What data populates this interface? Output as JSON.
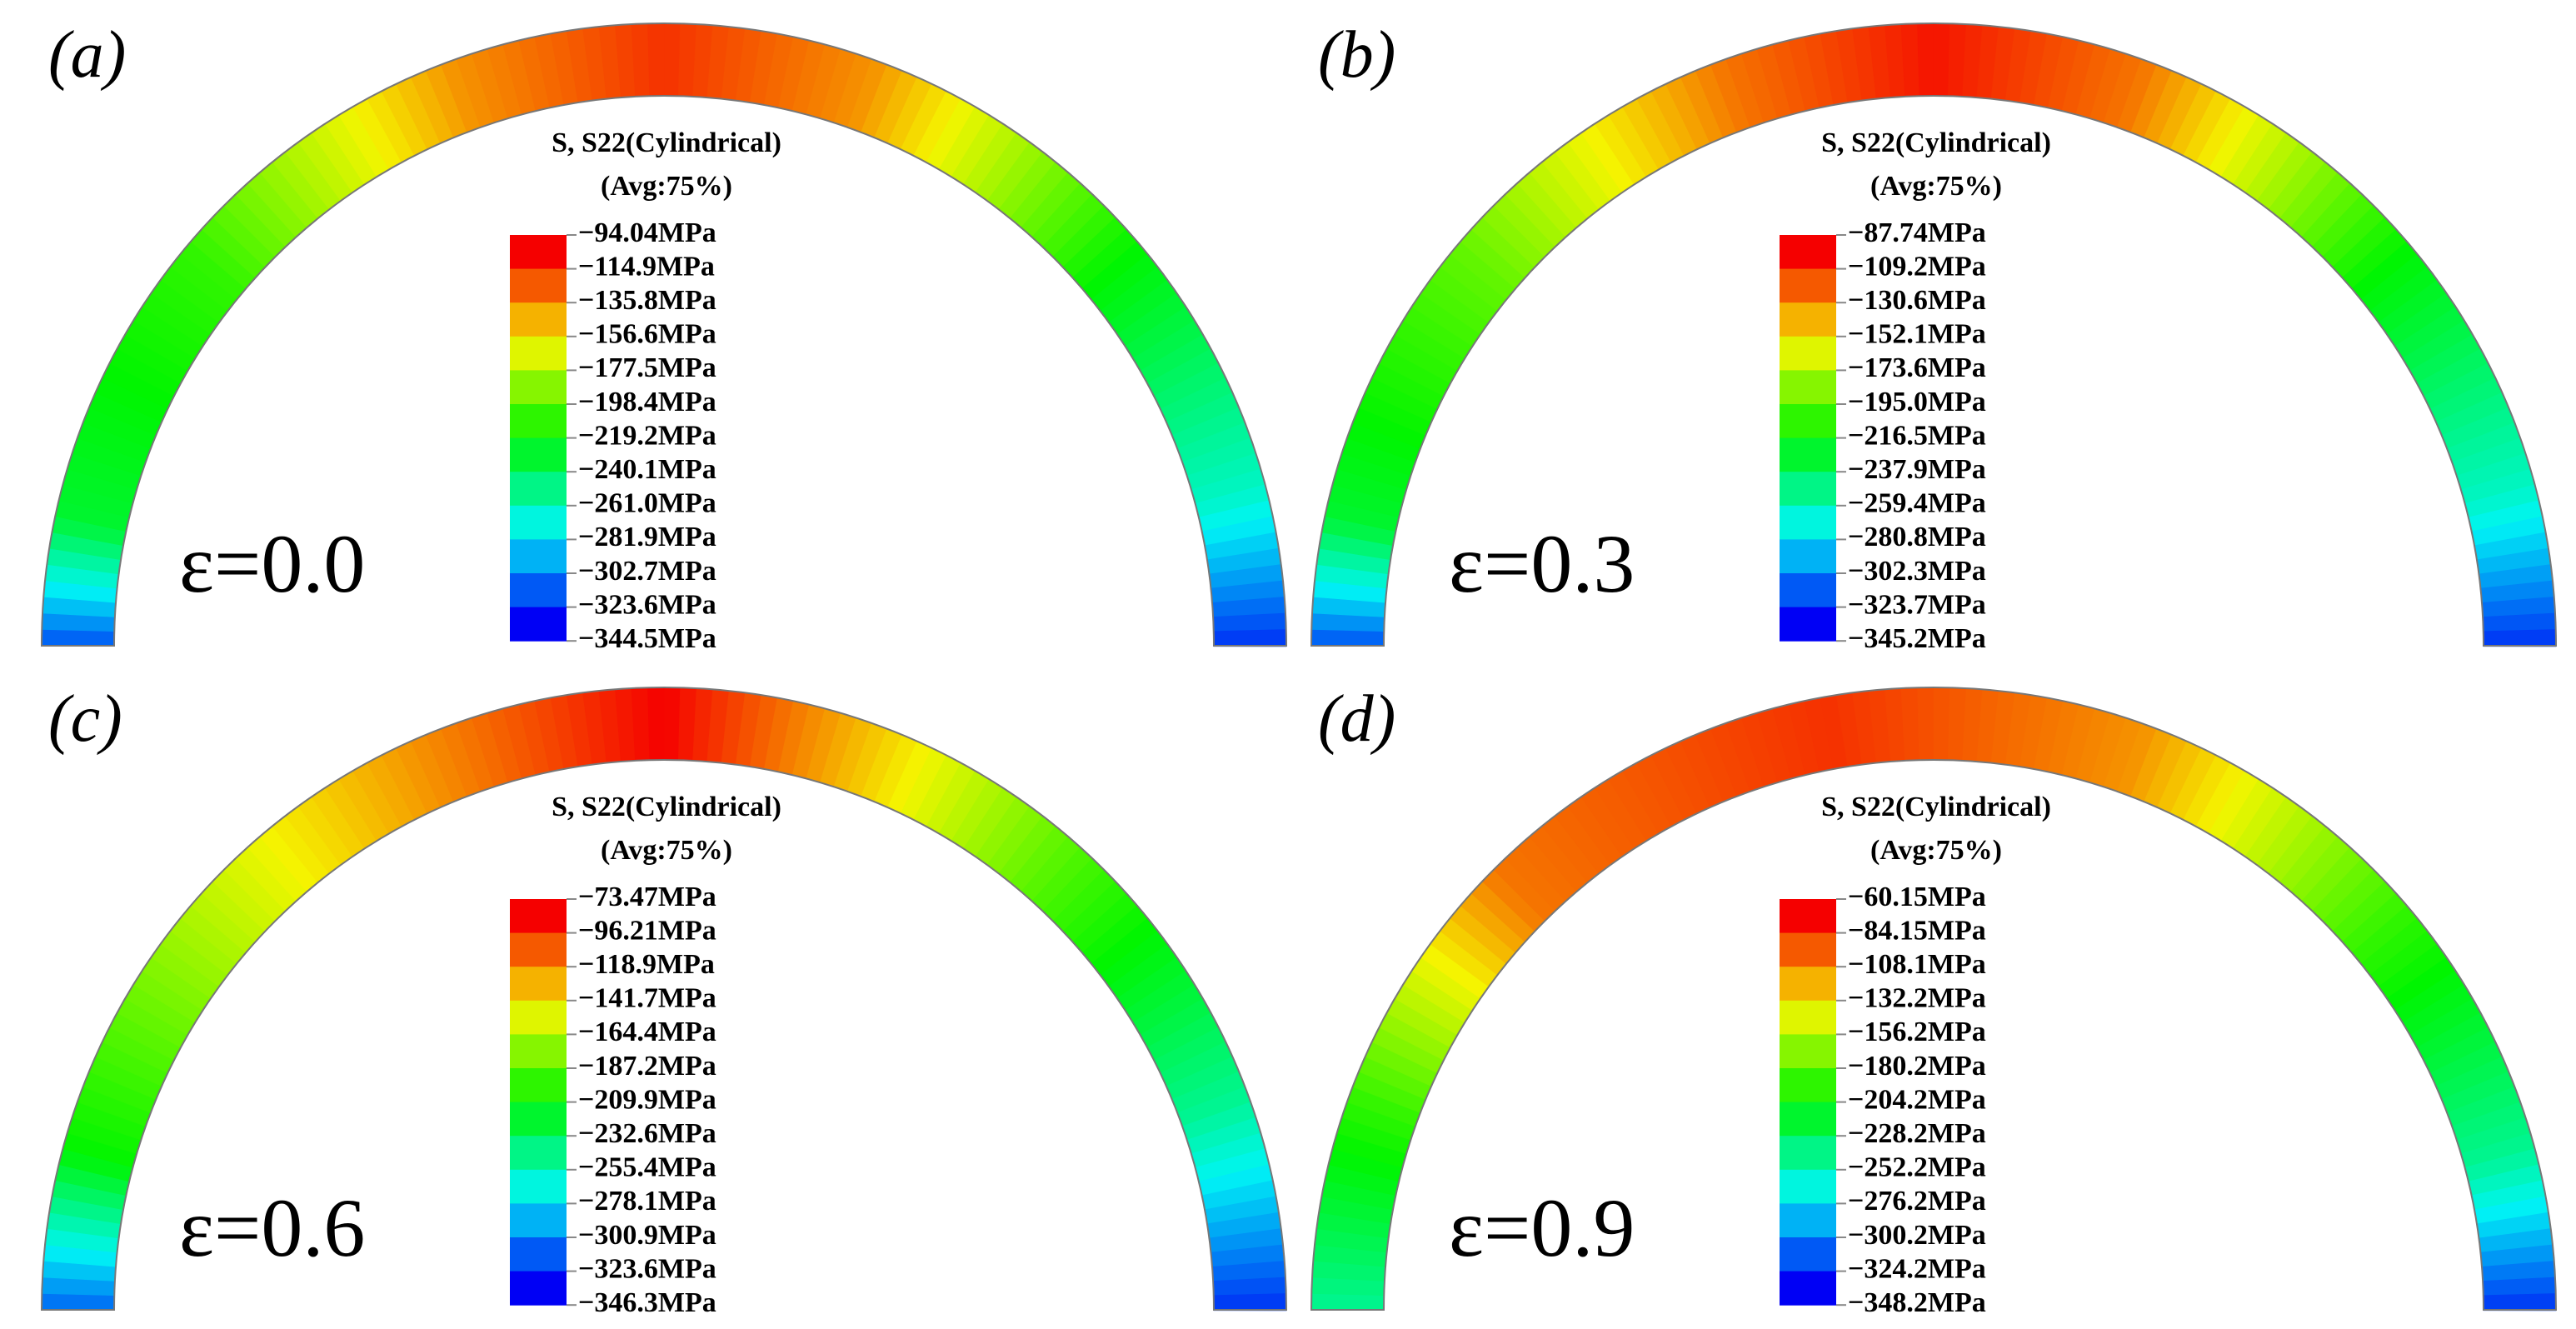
{
  "panels": [
    {
      "label": "(a)",
      "strain": "ε=0.0",
      "legend_title": "S, S22(Cylindrical)",
      "legend_subtitle": "(Avg:75%)",
      "legend_labels": [
        "−94.04MPa",
        "−114.9MPa",
        "−135.8MPa",
        "−156.6MPa",
        "−177.5MPa",
        "−198.4MPa",
        "−219.2MPa",
        "−240.1MPa",
        "−261.0MPa",
        "−281.9MPa",
        "−302.7MPa",
        "−323.6MPa",
        "−344.5MPa"
      ]
    },
    {
      "label": "(b)",
      "strain": "ε=0.3",
      "legend_title": "S, S22(Cylindrical)",
      "legend_subtitle": "(Avg:75%)",
      "legend_labels": [
        "−87.74MPa",
        "−109.2MPa",
        "−130.6MPa",
        "−152.1MPa",
        "−173.6MPa",
        "−195.0MPa",
        "−216.5MPa",
        "−237.9MPa",
        "−259.4MPa",
        "−280.8MPa",
        "−302.3MPa",
        "−323.7MPa",
        "−345.2MPa"
      ]
    },
    {
      "label": "(c)",
      "strain": "ε=0.6",
      "legend_title": "S, S22(Cylindrical)",
      "legend_subtitle": "(Avg:75%)",
      "legend_labels": [
        "−73.47MPa",
        "−96.21MPa",
        "−118.9MPa",
        "−141.7MPa",
        "−164.4MPa",
        "−187.2MPa",
        "−209.9MPa",
        "−232.6MPa",
        "−255.4MPa",
        "−278.1MPa",
        "−300.9MPa",
        "−323.6MPa",
        "−346.3MPa"
      ]
    },
    {
      "label": "(d)",
      "strain": "ε=0.9",
      "legend_title": "S, S22(Cylindrical)",
      "legend_subtitle": "(Avg:75%)",
      "legend_labels": [
        "−60.15MPa",
        "−84.15MPa",
        "−108.1MPa",
        "−132.2MPa",
        "−156.2MPa",
        "−180.2MPa",
        "−204.2MPa",
        "−228.2MPa",
        "−252.2MPa",
        "−276.2MPa",
        "−300.2MPa",
        "−324.2MPa",
        "−348.2MPa"
      ]
    }
  ]
}
